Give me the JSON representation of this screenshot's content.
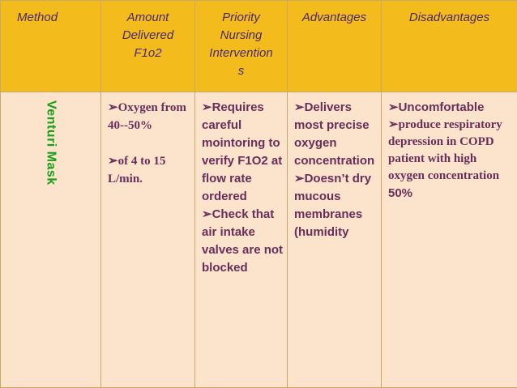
{
  "colors": {
    "header_bg": "#f4bb1c",
    "body_bg": "#fbe3cc",
    "header_text": "#4a2a66",
    "body_text": "#6a2e5a",
    "method_text": "#18a018",
    "border": "#c9a96a"
  },
  "bullet_icon": "arrow-bullet-icon",
  "bullet_symbol": "➢",
  "headers": {
    "method": "Method",
    "amount": [
      "Amount",
      "Delivered",
      "F1o2"
    ],
    "priority": [
      "Priority",
      "Nursing",
      "Intervention",
      "s"
    ],
    "advantages": "Advantages",
    "disadvantages": "Disadvantages"
  },
  "row": {
    "method": "Venturi Mask",
    "amount": [
      "Oxygen from 40--50%",
      "of 4 to 15 L/min."
    ],
    "priority": [
      "Requires careful mointoring to verify F1O2 at flow rate ordered",
      "Check that air intake valves are not blocked"
    ],
    "advantages": [
      "Delivers most precise oxygen concentration",
      "Doesn’t dry mucous membranes (humidity"
    ],
    "disadvantages": {
      "item1": "Uncomfortable",
      "item2": "produce respiratory depression in COPD patient with high oxygen concentration",
      "item2_pct": "50%"
    }
  }
}
